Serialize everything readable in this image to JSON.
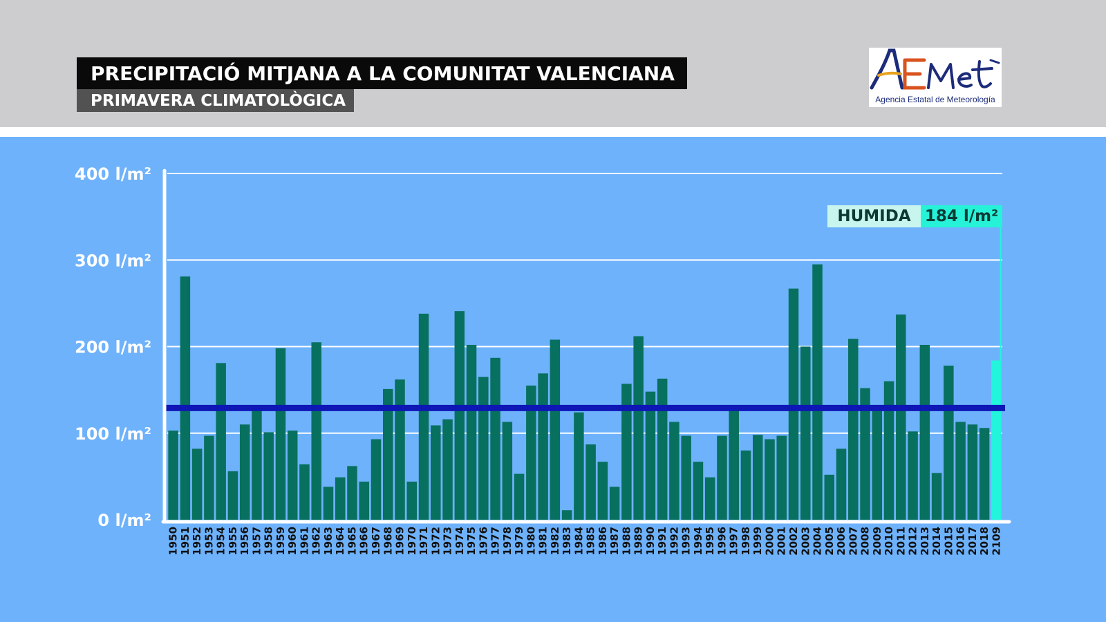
{
  "header": {
    "title": "PRECIPITACIÓ MITJANA A LA COMUNITAT VALENCIANA",
    "subtitle": "PRIMAVERA CLIMATOLÒGICA"
  },
  "logo": {
    "brand": "AEMet",
    "caption": "Agencia Estatal de Meteorología"
  },
  "annotation": {
    "label": "HUMIDA",
    "value_text": "184 l/m²"
  },
  "colors": {
    "background": "#6eb2fb",
    "header_bg": "#cdcccf",
    "bar": "#08705f",
    "highlight_bar": "#22f5dc",
    "average_line": "#0e17b5",
    "highlight_tick": "#e0142b"
  },
  "chart_data": {
    "type": "bar",
    "title": "PRECIPITACIÓ MITJANA A LA COMUNITAT VALENCIANA",
    "subtitle": "PRIMAVERA CLIMATOLÒGICA",
    "ylim": [
      0,
      400
    ],
    "y_ticks": [
      {
        "value": 0,
        "label": "0 l/m²"
      },
      {
        "value": 100,
        "label": "100 l/m²"
      },
      {
        "value": 200,
        "label": "200 l/m²"
      },
      {
        "value": 300,
        "label": "300 l/m²"
      },
      {
        "value": 400,
        "label": "400 l/m²"
      }
    ],
    "grid": true,
    "average_line_value": 129,
    "highlight_category": "2109",
    "categories": [
      "1950",
      "1951",
      "1952",
      "1953",
      "1954",
      "1955",
      "1956",
      "1957",
      "1958",
      "1959",
      "1960",
      "1961",
      "1962",
      "1963",
      "1964",
      "1965",
      "1966",
      "1967",
      "1968",
      "1969",
      "1970",
      "1971",
      "1972",
      "1973",
      "1974",
      "1975",
      "1976",
      "1977",
      "1978",
      "1979",
      "1980",
      "1981",
      "1982",
      "1983",
      "1984",
      "1985",
      "1986",
      "1987",
      "1988",
      "1989",
      "1990",
      "1991",
      "1992",
      "1993",
      "1994",
      "1995",
      "1996",
      "1997",
      "1998",
      "1999",
      "2000",
      "2001",
      "2002",
      "2003",
      "2004",
      "2005",
      "2006",
      "2007",
      "2008",
      "2009",
      "2010",
      "2011",
      "2012",
      "2013",
      "2014",
      "2015",
      "2016",
      "2017",
      "2018",
      "2109"
    ],
    "values": [
      103,
      281,
      82,
      97,
      181,
      56,
      110,
      126,
      101,
      198,
      103,
      64,
      205,
      38,
      49,
      62,
      44,
      93,
      151,
      162,
      44,
      238,
      109,
      116,
      241,
      202,
      165,
      187,
      113,
      53,
      155,
      169,
      208,
      11,
      124,
      87,
      67,
      38,
      157,
      212,
      148,
      163,
      113,
      97,
      67,
      49,
      97,
      126,
      80,
      98,
      93,
      97,
      267,
      200,
      295,
      52,
      82,
      209,
      152,
      126,
      160,
      237,
      102,
      202,
      54,
      178,
      113,
      110,
      106,
      184
    ]
  }
}
